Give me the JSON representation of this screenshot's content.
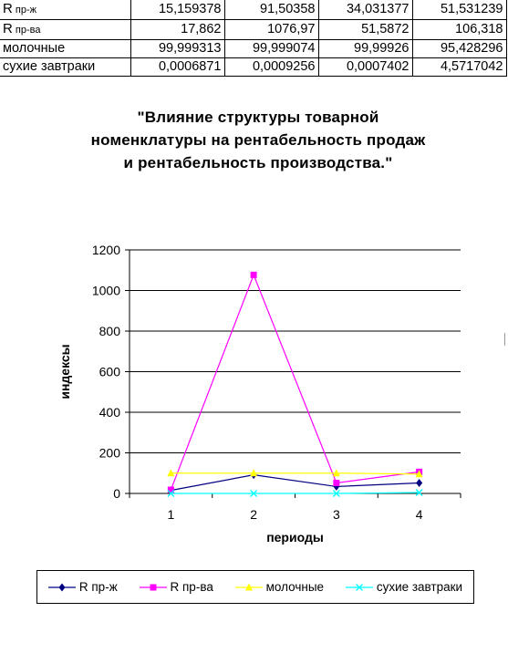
{
  "table": {
    "rows": [
      {
        "label_main": "R",
        "label_sub": "пр-ж",
        "values": [
          "15,159378",
          "91,50358",
          "34,031377",
          "51,531239"
        ]
      },
      {
        "label_main": "R",
        "label_sub": "пр-ва",
        "values": [
          "17,862",
          "1076,97",
          "51,5872",
          "106,318"
        ]
      },
      {
        "label_main": "молочные",
        "label_sub": "",
        "values": [
          "99,999313",
          "99,999074",
          "99,99926",
          "95,428296"
        ]
      },
      {
        "label_main": "сухие завтраки",
        "label_sub": "",
        "values": [
          "0,0006871",
          "0,0009256",
          "0,0007402",
          "4,5717042"
        ]
      }
    ]
  },
  "chart_data": {
    "type": "line",
    "title": "\"Влияние структуры товарной номенклатуры на рентабельность продаж и рентабельность производства.\"",
    "xlabel": "периоды",
    "ylabel": "индексы",
    "categories": [
      "1",
      "2",
      "3",
      "4"
    ],
    "ylim": [
      0,
      1200
    ],
    "yticks": [
      0,
      200,
      400,
      600,
      800,
      1000,
      1200
    ],
    "grid": true,
    "legend_position": "bottom",
    "series": [
      {
        "name": "R пр-ж",
        "values": [
          15.159378,
          91.50358,
          34.031377,
          51.531239
        ],
        "color": "#000080",
        "marker": "diamond"
      },
      {
        "name": "R пр-ва",
        "values": [
          17.862,
          1076.97,
          51.5872,
          106.318
        ],
        "color": "#ff00ff",
        "marker": "square"
      },
      {
        "name": "молочные",
        "values": [
          99.999313,
          99.999074,
          99.99926,
          95.428296
        ],
        "color": "#ffff00",
        "marker": "triangle"
      },
      {
        "name": "сухие завтраки",
        "values": [
          0.0006871,
          0.0009256,
          0.0007402,
          4.5717042
        ],
        "color": "#00ffff",
        "marker": "x"
      }
    ]
  }
}
